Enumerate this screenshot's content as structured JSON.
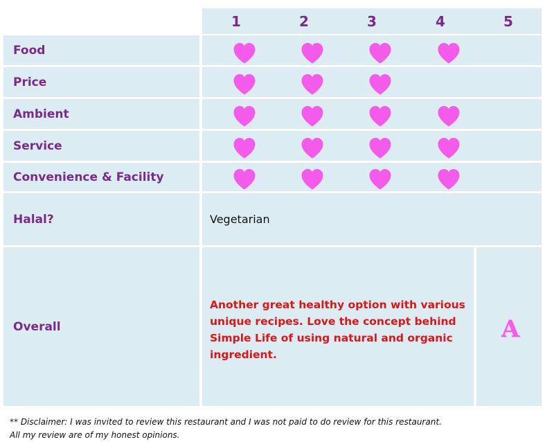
{
  "columns": [
    "1",
    "2",
    "3",
    "4",
    "5"
  ],
  "criteria": [
    {
      "label": "Food",
      "hearts": 4
    },
    {
      "label": "Price",
      "hearts": 3
    },
    {
      "label": "Ambient",
      "hearts": 4
    },
    {
      "label": "Service",
      "hearts": 4
    },
    {
      "label": "Convenience & Facility",
      "hearts": 4
    }
  ],
  "halal": {
    "label": "Halal?",
    "value": "Vegetarian"
  },
  "overall": {
    "label": "Overall",
    "lines": [
      "Another great healthy option with various",
      "unique recipes. Love the concept behind",
      "Simple Life of using natural  and organic",
      "ingredient."
    ],
    "grade": "A"
  },
  "disclaimer": {
    "line1": "** Disclaimer: I was invited to review this restaurant and  I was not paid to do review for this restaurant.",
    "line2": "All my review are of my honest opinions."
  },
  "icons": {
    "rating": "heart-icon"
  },
  "colors": {
    "cell": "#dbecf2",
    "label": "#7a2a8c",
    "heart": "#f45bea",
    "overall_text": "#e01515"
  }
}
